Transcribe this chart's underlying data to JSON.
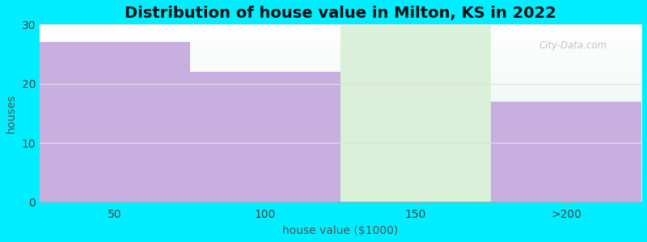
{
  "categories": [
    "50",
    "100",
    "150",
    ">200"
  ],
  "values": [
    27,
    22,
    30,
    17
  ],
  "bar_colors": [
    "#c9aee0",
    "#c9aee0",
    "#daf0d8",
    "#c9aee0"
  ],
  "title": "Distribution of house value in Milton, KS in 2022",
  "xlabel": "house value ($1000)",
  "ylabel": "houses",
  "ylim": [
    0,
    30
  ],
  "yticks": [
    0,
    10,
    20,
    30
  ],
  "background_color": "#00eeff",
  "plot_bg_top": "#e8f5e9",
  "plot_bg_bottom": "#ffffff",
  "grid_color": "#e0e0e0",
  "title_fontsize": 14,
  "label_fontsize": 10,
  "tick_fontsize": 10,
  "bar_width": 1.0
}
